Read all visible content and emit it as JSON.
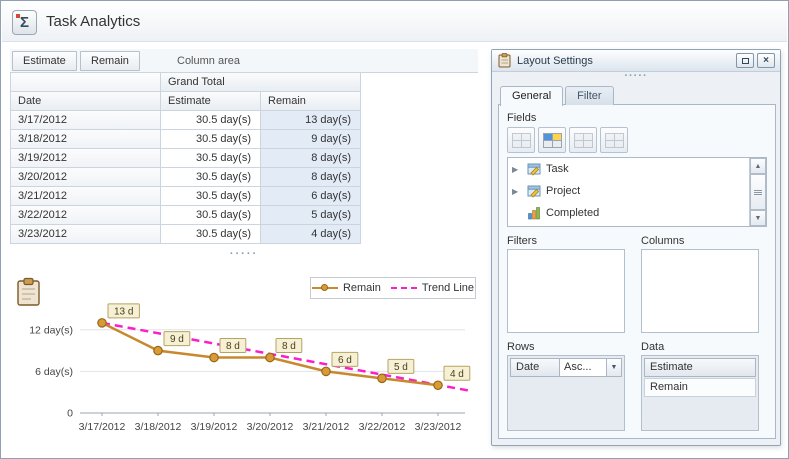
{
  "header": {
    "title": "Task Analytics"
  },
  "icons": {
    "sigma": "Σ",
    "expander": "▶",
    "scroll_up": "▲",
    "scroll_down": "▼",
    "dropdown": "▼",
    "close": "×",
    "dots": "·····"
  },
  "pivot": {
    "field_buttons": {
      "estimate": "Estimate",
      "remain": "Remain"
    },
    "column_area_label": "Column area",
    "grand_total_label": "Grand Total",
    "row_field_label": "Date",
    "column_labels": {
      "estimate": "Estimate",
      "remain": "Remain"
    },
    "rows": [
      {
        "date": "3/17/2012",
        "estimate": "30.5 day(s)",
        "remain": "13 day(s)"
      },
      {
        "date": "3/18/2012",
        "estimate": "30.5 day(s)",
        "remain": "9 day(s)"
      },
      {
        "date": "3/19/2012",
        "estimate": "30.5 day(s)",
        "remain": "8 day(s)"
      },
      {
        "date": "3/20/2012",
        "estimate": "30.5 day(s)",
        "remain": "8 day(s)"
      },
      {
        "date": "3/21/2012",
        "estimate": "30.5 day(s)",
        "remain": "6 day(s)"
      },
      {
        "date": "3/22/2012",
        "estimate": "30.5 day(s)",
        "remain": "5 day(s)"
      },
      {
        "date": "3/23/2012",
        "estimate": "30.5 day(s)",
        "remain": "4 day(s)"
      }
    ]
  },
  "chart_data": {
    "type": "line",
    "categories": [
      "3/17/2012",
      "3/18/2012",
      "3/19/2012",
      "3/20/2012",
      "3/21/2012",
      "3/22/2012",
      "3/23/2012"
    ],
    "series": [
      {
        "name": "Remain",
        "values": [
          13,
          9,
          8,
          8,
          6,
          5,
          4
        ],
        "color": "#c8892e",
        "point_labels": [
          "13 d",
          "9 d",
          "8 d",
          "8 d",
          "6 d",
          "5 d",
          "4 d"
        ]
      }
    ],
    "trend_line": {
      "name": "Trend Line",
      "color": "#fb1ec9",
      "style": "dashed",
      "start_value": 13,
      "end_value": 3.2
    },
    "y_ticks": [
      {
        "value": 0,
        "label": "0"
      },
      {
        "value": 6,
        "label": "6 day(s)"
      },
      {
        "value": 12,
        "label": "12 day(s)"
      }
    ],
    "ylim": [
      0,
      15
    ],
    "grid": "horizontal",
    "legend_position": "top-right",
    "point_label_box": {
      "fill": "#f6f0d7",
      "border": "#b5a45f"
    }
  },
  "layout_settings": {
    "title": "Layout Settings",
    "tabs": {
      "general": "General",
      "filter": "Filter"
    },
    "active_tab": "General",
    "fields_label": "Fields",
    "field_list": [
      {
        "label": "Task",
        "expandable": true
      },
      {
        "label": "Project",
        "expandable": true
      },
      {
        "label": "Completed",
        "expandable": false
      }
    ],
    "filters_label": "Filters",
    "columns_label": "Columns",
    "rows_label": "Rows",
    "rows_items": [
      {
        "field": "Date",
        "sort": "Asc..."
      }
    ],
    "data_label": "Data",
    "data_items": [
      "Estimate",
      "Remain"
    ]
  }
}
